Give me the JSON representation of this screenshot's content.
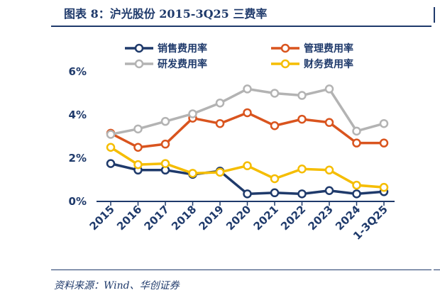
{
  "header": {
    "title": "图表 8：沪光股份 2015-3Q25 三费率",
    "source": "资料来源：Wind、华创证券"
  },
  "colors": {
    "navy": "#1f3a6b",
    "orange": "#d9541e",
    "gray": "#b3b3b3",
    "yellow": "#f5bd00"
  },
  "chart_data": {
    "type": "line",
    "categories": [
      "2015",
      "2016",
      "2017",
      "2018",
      "2019",
      "2020",
      "2021",
      "2022",
      "2023",
      "2024",
      "1-3Q25"
    ],
    "ylim": [
      0,
      6
    ],
    "yticks": [
      0,
      2,
      4,
      6
    ],
    "ytick_labels": [
      "0%",
      "2%",
      "4%",
      "6%"
    ],
    "grid": false,
    "legend_position": "top",
    "series": [
      {
        "name": "销售费用率",
        "color": "#1f3a6b",
        "values": [
          1.75,
          1.45,
          1.45,
          1.25,
          1.4,
          0.35,
          0.4,
          0.35,
          0.5,
          0.35,
          0.45
        ]
      },
      {
        "name": "管理费用率",
        "color": "#d9541e",
        "values": [
          3.15,
          2.5,
          2.65,
          3.85,
          3.6,
          4.1,
          3.5,
          3.8,
          3.65,
          2.7,
          2.7
        ]
      },
      {
        "name": "研发费用率",
        "color": "#b3b3b3",
        "values": [
          3.1,
          3.35,
          3.7,
          4.05,
          4.55,
          5.2,
          5.0,
          4.9,
          5.2,
          3.25,
          3.6
        ]
      },
      {
        "name": "财务费用率",
        "color": "#f5bd00",
        "values": [
          2.5,
          1.7,
          1.75,
          1.3,
          1.35,
          1.65,
          1.05,
          1.5,
          1.45,
          0.75,
          0.65
        ]
      }
    ]
  }
}
